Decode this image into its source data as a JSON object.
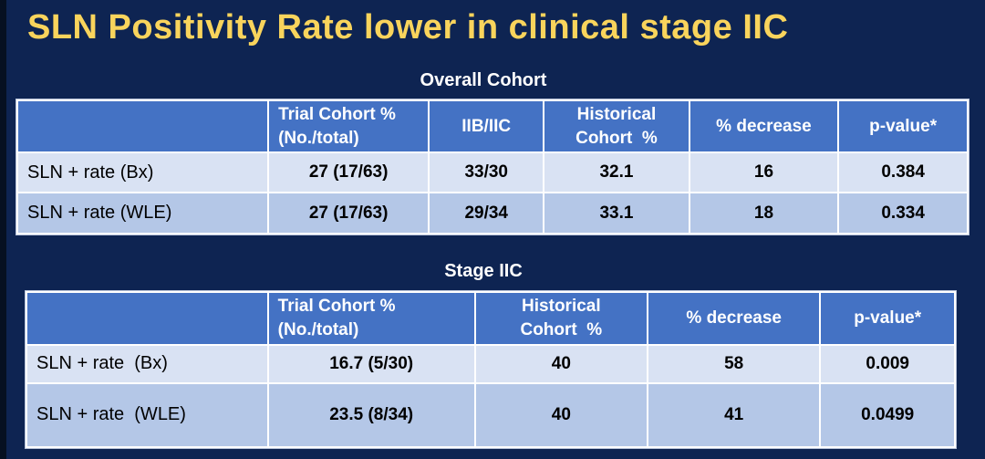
{
  "slide_title": "SLN Positivity Rate lower in clinical stage IIC",
  "colors": {
    "background": "#0e2452",
    "title_text": "#f9d45c",
    "table_header_bg": "#4472c4",
    "row_band_light": "#d9e2f3",
    "row_band_medium": "#b4c7e7",
    "header_text": "#ffffff",
    "body_text": "#000000"
  },
  "tables": [
    {
      "caption": "Overall Cohort",
      "headers": [
        "",
        "Trial Cohort %\n(No./total)",
        "IIB/IIC",
        "Historical\nCohort  %",
        "% decrease",
        "p-value*"
      ],
      "rows": [
        {
          "label": "SLN + rate (Bx)",
          "values": [
            "27 (17/63)",
            "33/30",
            "32.1",
            "16",
            "0.384"
          ]
        },
        {
          "label": "SLN + rate (WLE)",
          "values": [
            "27 (17/63)",
            "29/34",
            "33.1",
            "18",
            "0.334"
          ]
        }
      ]
    },
    {
      "caption": "Stage IIC",
      "headers": [
        "",
        "Trial Cohort %\n(No./total)",
        "Historical\nCohort  %",
        "% decrease",
        "p-value*"
      ],
      "rows": [
        {
          "label": "SLN + rate  (Bx)",
          "values": [
            "16.7 (5/30)",
            "40",
            "58",
            "0.009"
          ]
        },
        {
          "label": "SLN + rate  (WLE)",
          "values": [
            "23.5 (8/34)",
            "40",
            "41",
            "0.0499"
          ]
        }
      ]
    }
  ]
}
